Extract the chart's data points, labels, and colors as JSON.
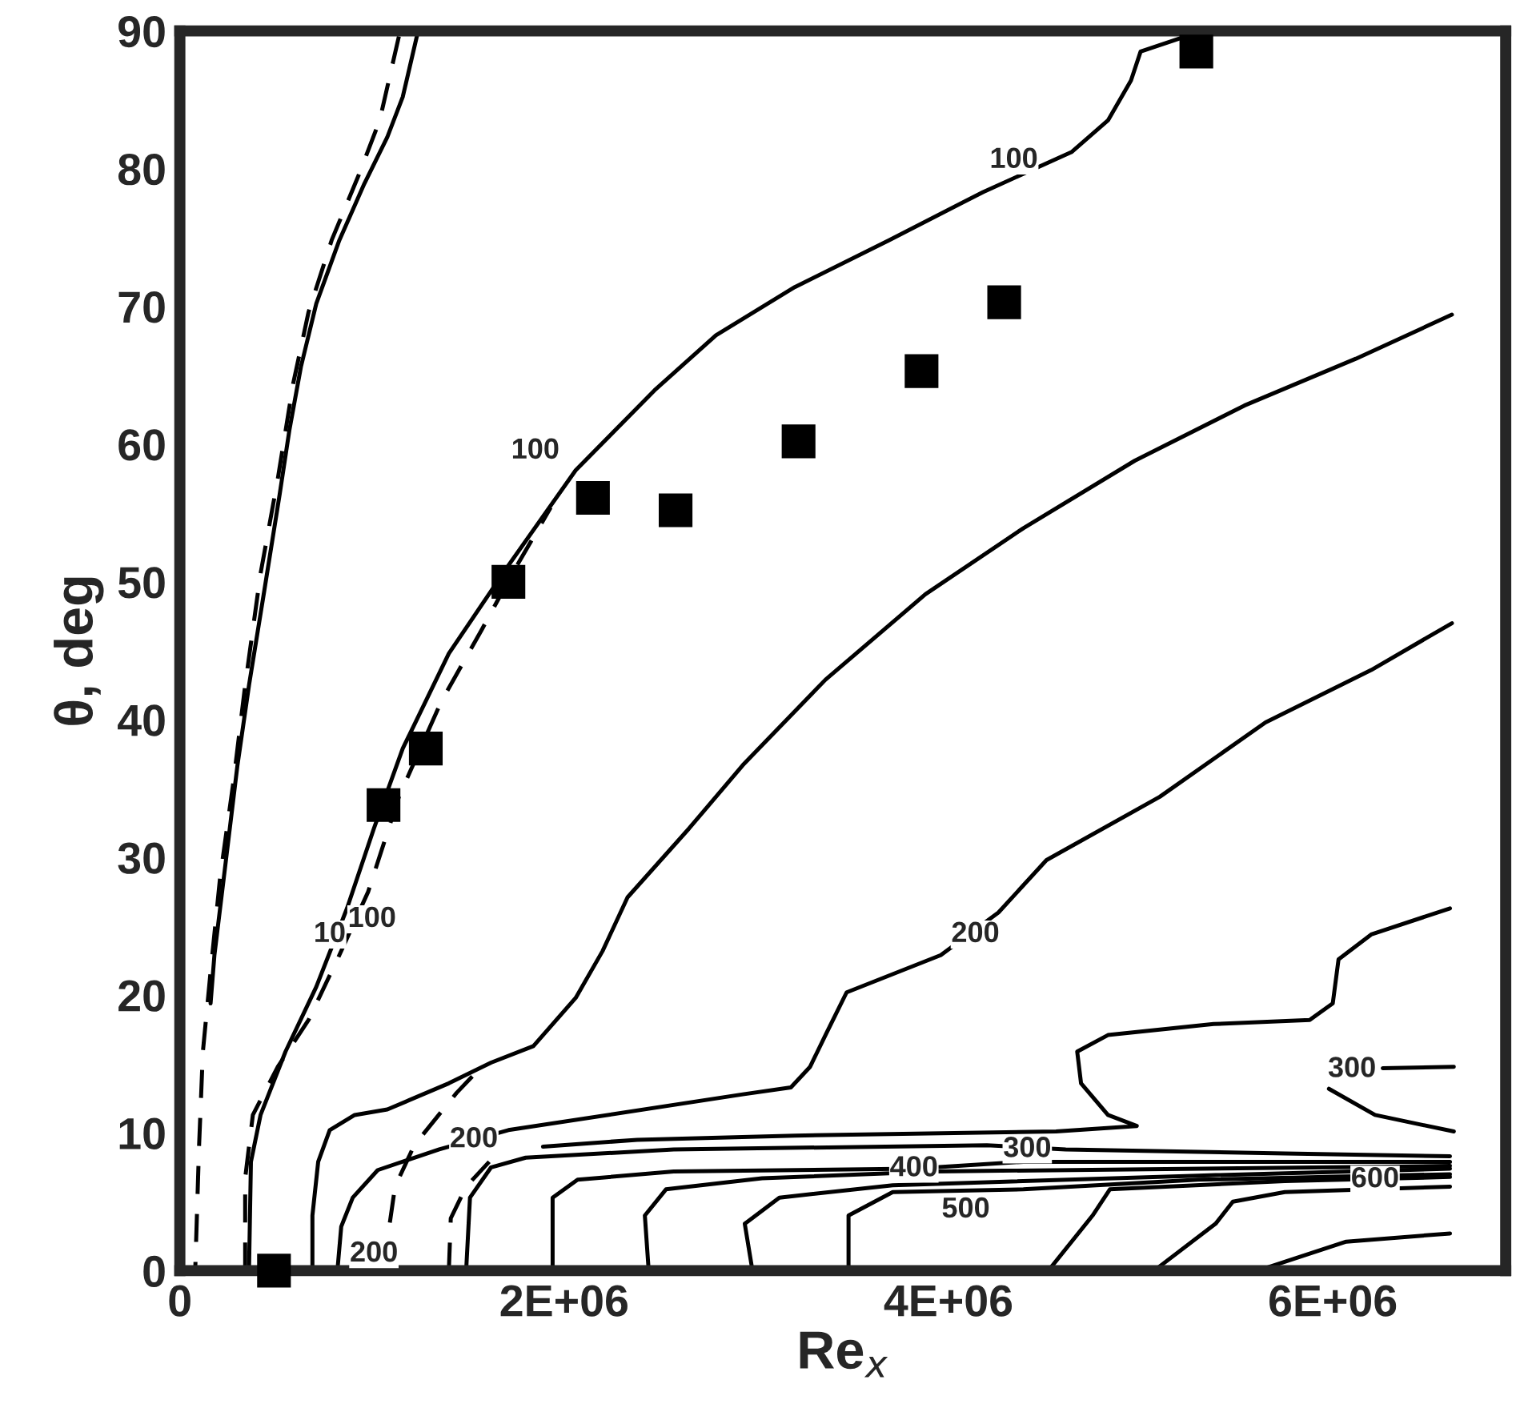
{
  "chart_data": {
    "type": "line",
    "xlabel": "Re$_{x}$",
    "ylabel": "θ, deg",
    "xlim": [
      0,
      6900000
    ],
    "ylim": [
      0,
      90
    ],
    "xticks": [
      0,
      {
        "value": 2000000,
        "label": "2E+06"
      },
      {
        "value": 4000000,
        "label": "4E+06"
      },
      {
        "value": 6000000,
        "label": "6E+06"
      }
    ],
    "yticks": [
      0,
      10,
      20,
      30,
      40,
      50,
      60,
      70,
      80,
      90
    ],
    "series": [
      {
        "color": "#000000",
        "line_style": "solid",
        "x": [
          1240000,
          1160000,
          1080000,
          960000,
          830000,
          710000,
          630000,
          570000,
          520000,
          440000,
          360000,
          300000,
          240000,
          180000,
          160000
        ],
        "values": [
          90.0,
          85.2,
          82.3,
          78.9,
          74.8,
          70.2,
          65.6,
          61.0,
          56.4,
          49.4,
          42.5,
          36.7,
          29.8,
          22.9,
          19.4
        ]
      },
      {
        "color": "#000000",
        "line_style": "dashed",
        "x": [
          1140000,
          1040000,
          930000,
          790000,
          670000,
          590000,
          510000,
          420000,
          340000,
          280000,
          210000,
          160000,
          120000,
          100000,
          80000
        ],
        "values": [
          89.6,
          83.5,
          79.5,
          74.8,
          69.6,
          64.4,
          57.5,
          50.6,
          42.5,
          35.6,
          28.6,
          21.7,
          15.9,
          9.0,
          0
        ]
      },
      {
        "color": "#000000",
        "line_style": "solid",
        "x": [
          360000,
          370000,
          420000,
          550000,
          710000,
          870000,
          1010000,
          1160000,
          1400000,
          1710000,
          2060000,
          2470000,
          2790000,
          3200000,
          3690000,
          4180000,
          4640000,
          4830000,
          4950000,
          5000000,
          5320000
        ],
        "values": [
          0,
          7.9,
          11.3,
          15.9,
          20.6,
          26.3,
          32.1,
          37.9,
          44.8,
          51.2,
          58.1,
          63.9,
          67.9,
          71.4,
          74.8,
          78.3,
          81.2,
          83.5,
          86.4,
          88.5,
          90.0
        ]
      },
      {
        "color": "#000000",
        "line_style": "dashed",
        "x": [
          340000,
          340000,
          380000,
          510000,
          670000,
          830000,
          980000,
          1140000,
          1360000,
          1570000,
          1730000,
          1930000
        ],
        "values": [
          0,
          6.7,
          11.3,
          14.8,
          18.2,
          22.9,
          27.5,
          34.4,
          41.3,
          46.5,
          50.6,
          55.4
        ]
      },
      {
        "color": "#000000",
        "line_style": "solid",
        "x": [
          690000,
          690000,
          720000,
          780000,
          910000,
          1080000,
          1400000,
          1620000,
          1840000,
          2060000,
          2200000,
          2330000,
          2650000,
          2930000,
          3360000,
          3880000,
          4390000,
          4970000,
          5540000,
          6120000,
          6620000
        ],
        "values": [
          0,
          4.0,
          7.9,
          10.2,
          11.3,
          11.7,
          13.6,
          15.1,
          16.3,
          19.8,
          23.2,
          27.1,
          32.1,
          36.7,
          42.9,
          49.1,
          53.9,
          58.8,
          62.8,
          66.2,
          69.4
        ]
      },
      {
        "color": "#000000",
        "line_style": "solid",
        "x": [
          820000,
          840000,
          900000,
          1030000,
          1350000,
          1710000,
          2930000,
          3180000,
          3280000,
          3360000,
          3470000,
          3960000,
          4260000,
          4510000,
          5100000,
          5650000,
          6200000,
          6620000
        ],
        "values": [
          0,
          3.2,
          5.3,
          7.3,
          8.8,
          10.2,
          12.8,
          13.3,
          14.8,
          17.1,
          20.2,
          22.9,
          26.0,
          29.8,
          34.4,
          39.8,
          43.6,
          47.0
        ]
      },
      {
        "color": "#000000",
        "line_style": "dashed",
        "x": [
          1080000,
          1090000,
          1120000,
          1220000,
          1440000,
          1570000
        ],
        "values": [
          0,
          3.2,
          6.1,
          9.1,
          12.9,
          14.8
        ]
      },
      {
        "color": "#000000",
        "line_style": "dashed",
        "x": [
          1400000,
          1410000,
          1490000,
          1610000
        ],
        "values": [
          0,
          3.8,
          6.1,
          7.9
        ]
      },
      {
        "color": "#000000",
        "line_style": "solid",
        "x": [
          6610000,
          6200000,
          6030000,
          6000000,
          5880000,
          5380000,
          4830000,
          4670000,
          4690000,
          4830000,
          4980000,
          4560000,
          3200000,
          2380000,
          1890000
        ],
        "values": [
          26.3,
          24.4,
          22.6,
          19.4,
          18.2,
          17.9,
          17.1,
          15.9,
          13.6,
          11.3,
          10.5,
          10.1,
          9.8,
          9.5,
          9.0
        ]
      },
      {
        "color": "#000000",
        "line_style": "solid",
        "x": [
          1490000,
          1510000,
          1620000,
          1800000,
          2570000,
          4200000,
          4610000,
          5750000,
          6610000
        ],
        "values": [
          0,
          5.3,
          7.5,
          8.2,
          8.8,
          9.1,
          8.8,
          8.5,
          8.3
        ]
      },
      {
        "color": "#000000",
        "line_style": "solid",
        "x": [
          1940000,
          1940000,
          2070000,
          2570000,
          3820000,
          4390000,
          5750000,
          6610000
        ],
        "values": [
          0,
          5.3,
          6.6,
          7.2,
          7.4,
          7.9,
          7.9,
          7.9
        ]
      },
      {
        "color": "#000000",
        "line_style": "solid",
        "x": [
          2440000,
          2420000,
          2530000,
          3030000,
          3930000,
          6610000
        ],
        "values": [
          0,
          4.0,
          5.9,
          6.7,
          7.2,
          7.6
        ]
      },
      {
        "color": "#000000",
        "line_style": "solid",
        "x": [
          2980000,
          2940000,
          3120000,
          3710000,
          5300000,
          6610000
        ],
        "values": [
          0,
          3.4,
          5.3,
          6.2,
          6.9,
          7.4
        ]
      },
      {
        "color": "#000000",
        "line_style": "solid",
        "x": [
          3480000,
          3480000,
          3710000,
          4390000,
          5300000,
          6610000
        ],
        "values": [
          0,
          4.0,
          5.7,
          5.9,
          6.6,
          7.0
        ]
      },
      {
        "color": "#000000",
        "line_style": "solid",
        "x": [
          4520000,
          4750000,
          4840000,
          5750000,
          6610000
        ],
        "values": [
          0,
          4.0,
          5.9,
          6.5,
          6.8
        ]
      },
      {
        "color": "#000000",
        "line_style": "solid",
        "x": [
          5070000,
          5390000,
          5480000,
          5750000,
          6610000
        ],
        "values": [
          0,
          3.4,
          5.0,
          5.7,
          6.1
        ]
      },
      {
        "color": "#000000",
        "line_style": "solid",
        "x": [
          5610000,
          6070000,
          6610000
        ],
        "values": [
          0,
          2.1,
          2.7
        ]
      },
      {
        "color": "#000000",
        "line_style": "solid",
        "x": [
          6260000,
          6630000
        ],
        "values": [
          14.7,
          14.8
        ]
      },
      {
        "color": "#000000",
        "line_style": "solid",
        "x": [
          5980000,
          6220000,
          6630000
        ],
        "values": [
          13.2,
          11.3,
          10.1
        ]
      },
      {
        "type": "scatter",
        "color": "#000000",
        "marker": "square",
        "x": [
          490000,
          1060000,
          1280000,
          1710000,
          2150000,
          2580000,
          3220000,
          3860000,
          4290000,
          5290000
        ],
        "values": [
          0,
          33.8,
          37.9,
          50.0,
          56.1,
          55.2,
          60.2,
          65.3,
          70.3,
          88.5
        ]
      }
    ],
    "annotations": [
      {
        "text": "100",
        "x": 4340000,
        "y": 80.6
      },
      {
        "text": "100",
        "x": 1850000,
        "y": 59.5
      },
      {
        "text": "100",
        "x": 1000000,
        "y": 25.5
      },
      {
        "text": "10",
        "x": 780000,
        "y": 24.4
      },
      {
        "text": "200",
        "x": 4140000,
        "y": 24.4
      },
      {
        "text": "200",
        "x": 1530000,
        "y": 9.5
      },
      {
        "text": "200",
        "x": 1010000,
        "y": 1.2
      },
      {
        "text": "300",
        "x": 4410000,
        "y": 8.8
      },
      {
        "text": "300",
        "x": 6100000,
        "y": 14.6
      },
      {
        "text": "400",
        "x": 3820000,
        "y": 7.4
      },
      {
        "text": "500",
        "x": 4090000,
        "y": 4.4
      },
      {
        "text": "600",
        "x": 6220000,
        "y": 6.6
      }
    ]
  }
}
